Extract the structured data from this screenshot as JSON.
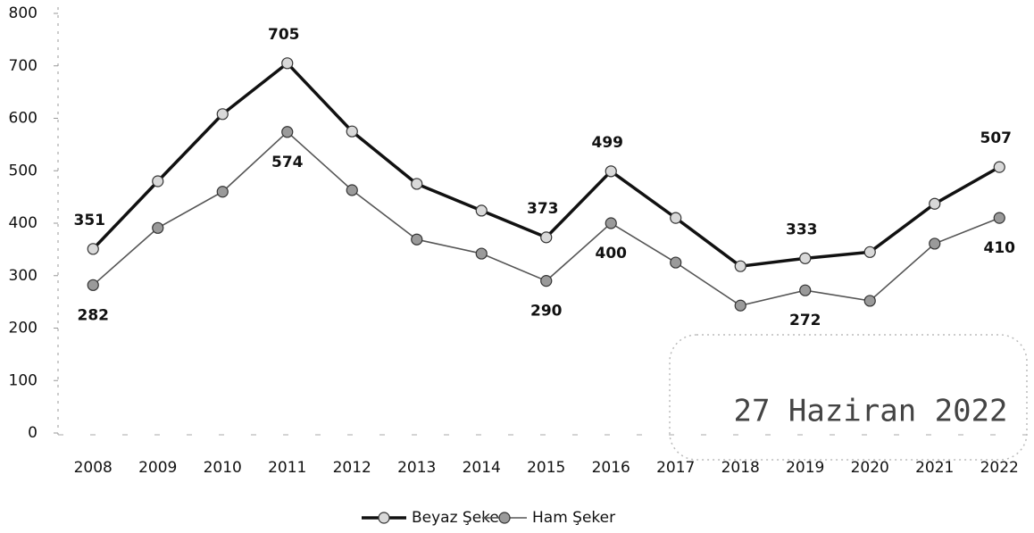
{
  "chart_data": {
    "type": "line",
    "categories": [
      "2008",
      "2009",
      "2010",
      "2011",
      "2012",
      "2013",
      "2014",
      "2015",
      "2016",
      "2017",
      "2018",
      "2019",
      "2020",
      "2021",
      "2022"
    ],
    "series": [
      {
        "name": "Beyaz Şeker",
        "color": "#111111",
        "marker_color": "#d9d9d9",
        "values": [
          351,
          480,
          608,
          705,
          575,
          475,
          424,
          373,
          499,
          410,
          318,
          333,
          345,
          437,
          507
        ],
        "value_labels": [
          "351",
          null,
          null,
          "705",
          null,
          null,
          null,
          "373",
          "499",
          null,
          null,
          "333",
          null,
          null,
          "507"
        ]
      },
      {
        "name": "Ham Şeker",
        "color": "#555555",
        "marker_color": "#9a9a9a",
        "values": [
          282,
          391,
          460,
          574,
          463,
          369,
          342,
          290,
          400,
          325,
          243,
          272,
          252,
          361,
          410
        ],
        "value_labels": [
          "282",
          null,
          null,
          "574",
          null,
          null,
          null,
          "290",
          "400",
          null,
          null,
          "272",
          null,
          null,
          "410"
        ]
      }
    ],
    "ylim": [
      0,
      800
    ],
    "yticks": [
      0,
      100,
      200,
      300,
      400,
      500,
      600,
      700,
      800
    ],
    "grid": false,
    "legend": "bottom",
    "annotation": "27 Haziran 2022"
  }
}
